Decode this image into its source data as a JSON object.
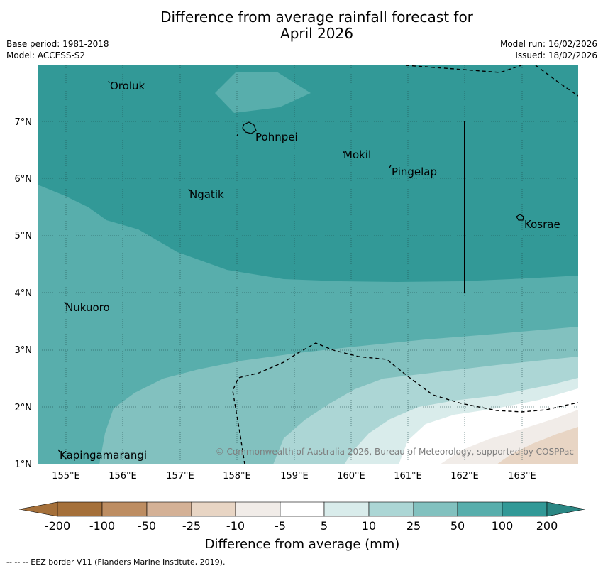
{
  "title": {
    "line1": "Difference from average rainfall forecast for",
    "line2": "April 2026"
  },
  "meta": {
    "base_period": "Base period: 1981-2018",
    "model": "Model: ACCESS-S2",
    "model_run": "Model run: 16/02/2026",
    "issued": "Issued: 18/02/2026"
  },
  "map": {
    "lon_ticks": [
      "155°E",
      "156°E",
      "157°E",
      "158°E",
      "159°E",
      "160°E",
      "161°E",
      "162°E",
      "163°E"
    ],
    "lat_ticks": [
      "1°N",
      "2°N",
      "3°N",
      "4°N",
      "5°N",
      "6°N",
      "7°N"
    ],
    "places": {
      "oroluk": "Oroluk",
      "pohnpei": "Pohnpei",
      "mokil": "Mokil",
      "pingelap": "Pingelap",
      "ngatik": "Ngatik",
      "kosrae": "Kosrae",
      "nukuoro": "Nukuoro",
      "kapingamarangi": "Kapingamarangi"
    },
    "copyright": "© Commonwealth of Australia 2026, Bureau of Meteorology, supported by COSPPac"
  },
  "colorbar": {
    "title": "Difference from average (mm)",
    "labels": [
      "-200",
      "-100",
      "-50",
      "-25",
      "-10",
      "-5",
      "5",
      "10",
      "25",
      "50",
      "100",
      "200"
    ],
    "colors": [
      "#a5703a",
      "#bd8d62",
      "#d4b196",
      "#e8d5c4",
      "#f1ece8",
      "#ffffff",
      "#d9eceb",
      "#acd6d5",
      "#82c1bf",
      "#58aeac",
      "#329997",
      "#2b8784"
    ]
  },
  "footer": {
    "eez_legend": "--  --  -- EEZ border V11 (Flanders Marine Institute, 2019)."
  }
}
